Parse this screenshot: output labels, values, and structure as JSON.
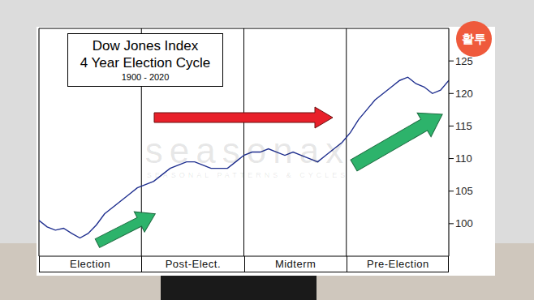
{
  "chart_data": {
    "type": "line",
    "title": "Dow Jones Index",
    "subtitle": "4 Year Election Cycle",
    "annotations": [
      "1900 - 2020"
    ],
    "watermark": {
      "text": "seasonax",
      "subtext": "SEASONAL PATTERNS & CYCLES"
    },
    "badge": "활투",
    "phases": [
      "Election",
      "Post-Elect.",
      "Midterm",
      "Pre-Election"
    ],
    "x": [
      0,
      0.08,
      0.16,
      0.24,
      0.32,
      0.4,
      0.48,
      0.56,
      0.64,
      0.72,
      0.8,
      0.88,
      0.96,
      1.04,
      1.12,
      1.2,
      1.28,
      1.36,
      1.44,
      1.52,
      1.6,
      1.68,
      1.76,
      1.84,
      1.92,
      2,
      2.08,
      2.16,
      2.24,
      2.32,
      2.4,
      2.48,
      2.56,
      2.64,
      2.72,
      2.8,
      2.88,
      2.96,
      3.04,
      3.12,
      3.2,
      3.28,
      3.36,
      3.44,
      3.52,
      3.6,
      3.68,
      3.76,
      3.84,
      3.92,
      4
    ],
    "values": [
      100.5,
      99.5,
      99,
      99.3,
      98.5,
      97.8,
      98.5,
      99.8,
      101.5,
      102.5,
      103.5,
      104.5,
      105.5,
      106,
      106.5,
      107.5,
      108.5,
      109,
      109.5,
      109.5,
      109,
      108.5,
      108.5,
      108.5,
      109.5,
      110.5,
      111,
      111,
      111.5,
      111,
      110.5,
      111,
      110.5,
      110,
      109.5,
      110.5,
      111.5,
      112.5,
      114,
      116,
      117.5,
      119,
      120,
      121,
      122,
      122.5,
      121.5,
      121,
      120,
      120.5,
      122
    ],
    "color": "#1f2f8f",
    "xlim": [
      0,
      4
    ],
    "xticks": [
      0,
      0.25,
      0.5,
      0.75,
      1,
      1.25,
      1.5,
      1.75,
      2,
      2.25,
      2.5,
      2.75,
      3,
      3.25,
      3.5,
      3.75,
      4
    ],
    "ylim": [
      95,
      130
    ],
    "yticks": [
      100,
      105,
      110,
      115,
      120,
      125
    ],
    "grid": true,
    "tick_labels": "y"
  }
}
